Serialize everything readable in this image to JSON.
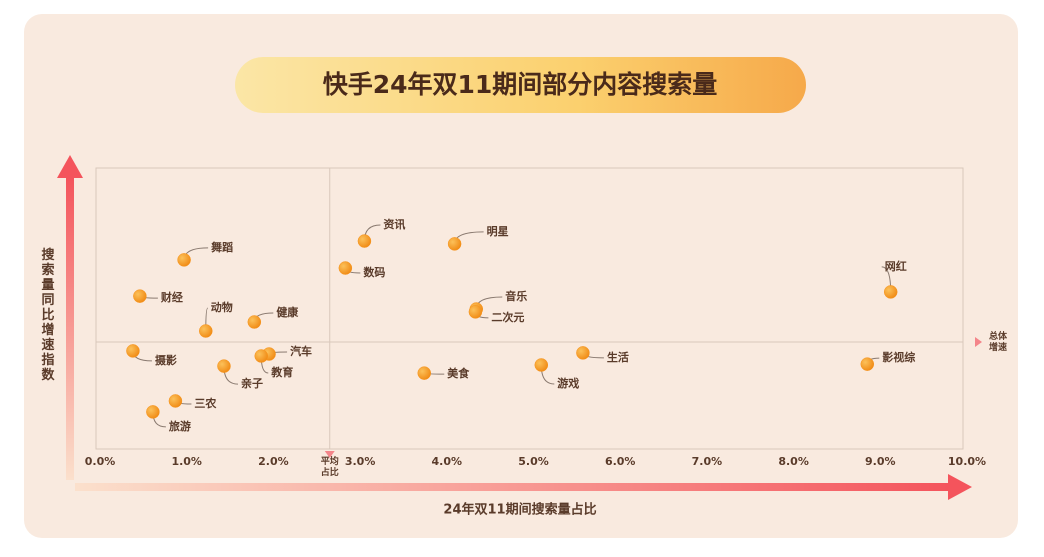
{
  "chart_data": {
    "type": "scatter",
    "title": "快手24年双11期间部分内容搜索量",
    "x_label": "24年双11期间搜索量占比",
    "y_label": "搜索量同比增速指数",
    "avg_x_label": "平均占比",
    "avg_y_label": "总体增速",
    "avg_x": 2.65,
    "avg_y": 38.1,
    "color": "#f7941d",
    "xlim": [
      0,
      10
    ],
    "ylim": [
      0,
      100
    ],
    "xticks": [
      {
        "value": 0,
        "label": "0.0%"
      },
      {
        "value": 1,
        "label": "1.0%"
      },
      {
        "value": 2,
        "label": "2.0%"
      },
      {
        "value": 3,
        "label": "3.0%"
      },
      {
        "value": 4,
        "label": "4.0%"
      },
      {
        "value": 5,
        "label": "5.0%"
      },
      {
        "value": 6,
        "label": "6.0%"
      },
      {
        "value": 7,
        "label": "7.0%"
      },
      {
        "value": 8,
        "label": "8.0%"
      },
      {
        "value": 9,
        "label": "9.0%"
      },
      {
        "value": 10,
        "label": "10.0%"
      }
    ],
    "labels": [
      "资讯",
      "明星",
      "舞蹈",
      "数码",
      "网红",
      "财经",
      "音乐",
      "二次元",
      "健康",
      "动物",
      "摄影",
      "生活",
      "汽车",
      "教育",
      "影视综",
      "亲子",
      "游戏",
      "美食",
      "三农",
      "旅游"
    ],
    "x": [
      3.05,
      4.09,
      0.97,
      2.83,
      9.12,
      0.46,
      4.34,
      4.33,
      1.78,
      1.22,
      0.38,
      5.57,
      1.95,
      1.86,
      8.85,
      1.43,
      5.09,
      3.74,
      0.87,
      0.61
    ],
    "y": [
      74.0,
      73.0,
      67.3,
      64.4,
      55.9,
      54.4,
      49.8,
      48.8,
      45.2,
      42.0,
      34.9,
      34.2,
      33.8,
      33.1,
      30.2,
      29.5,
      29.9,
      27.0,
      17.1,
      13.2
    ]
  }
}
